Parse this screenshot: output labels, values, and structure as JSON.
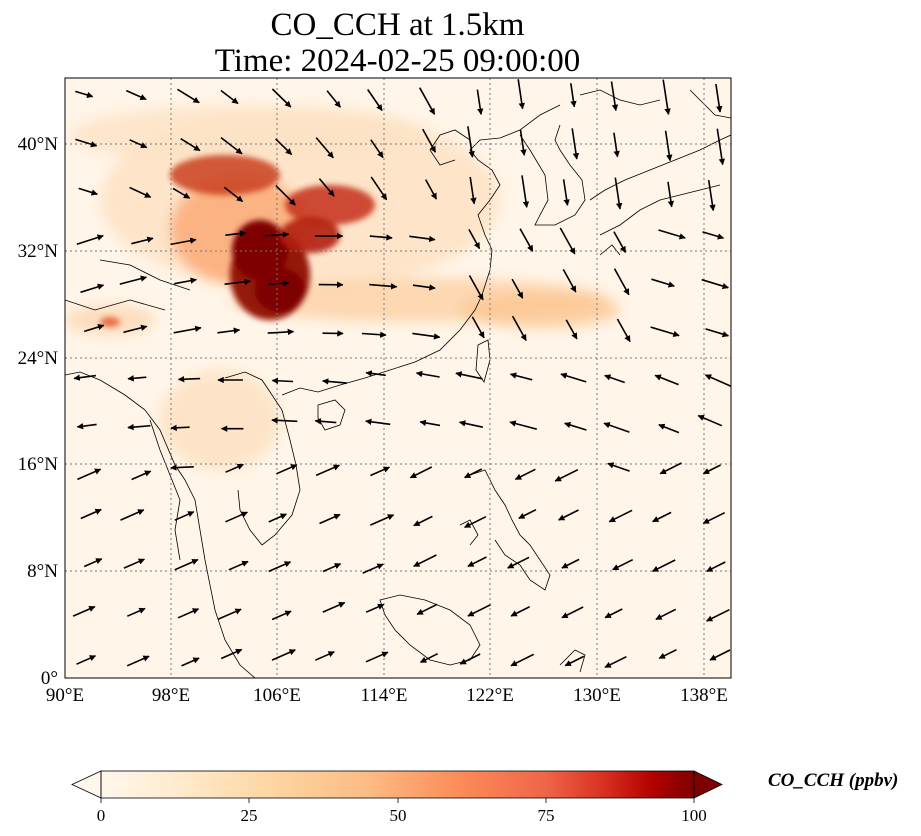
{
  "title": {
    "line1": "CO_CCH at 1.5km",
    "line2": "Time: 2024-02-25 09:00:00"
  },
  "map": {
    "lon_range": [
      90,
      139
    ],
    "lat_range": [
      0,
      45
    ],
    "lon_ticks": [
      "90°E",
      "98°E",
      "106°E",
      "114°E",
      "122°E",
      "130°E",
      "138°E"
    ],
    "lat_ticks": [
      "0°",
      "8°N",
      "16°N",
      "24°N",
      "32°N",
      "40°N"
    ],
    "gridlines": true,
    "field_variable": "CO_CCH",
    "field_description": "CO concentration at 1.5km with wind vectors",
    "colormap": "OrRd",
    "colors": {
      "low": "#fff7ec",
      "mid": "#fdbb84",
      "high": "#7f0000",
      "coast": "#000000",
      "grid": "#777777"
    }
  },
  "colorbar": {
    "label": "CO_CCH (ppbv)",
    "ticks": [
      "0",
      "25",
      "50",
      "75",
      "100"
    ],
    "range": [
      0,
      100
    ],
    "extend": "both"
  }
}
